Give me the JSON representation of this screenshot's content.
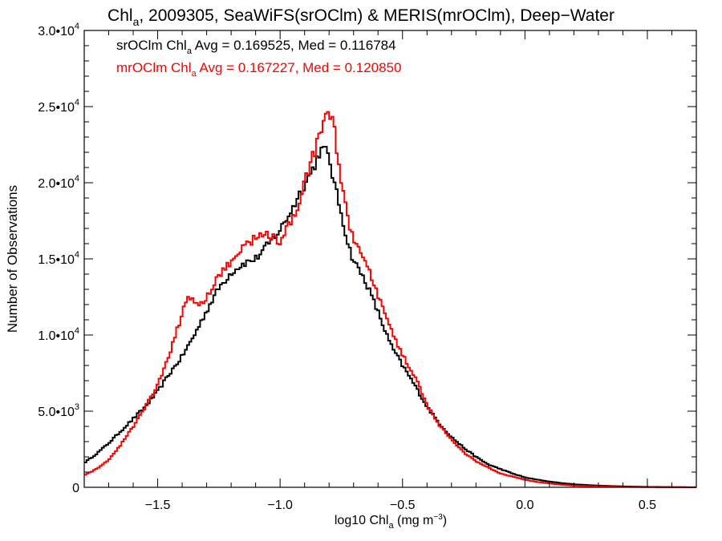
{
  "chart_data": {
    "type": "line",
    "title": {
      "pre": "Chl",
      "sub": "a",
      "post": ", 2009305, SeaWiFS(srOClm) & MERIS(mrOClm), Deep−Water"
    },
    "xlabel": {
      "pre": "log10 Chl",
      "sub": "a",
      "post": " (mg m",
      "sup": "−3",
      "close": ")"
    },
    "ylabel": "Number of Observations",
    "xlim": [
      -1.8,
      0.7
    ],
    "ylim": [
      0,
      30000
    ],
    "grid": false,
    "x_ticks": [
      -1.5,
      -1.0,
      -0.5,
      0.0,
      0.5
    ],
    "x_tick_labels": [
      "−1.5",
      "−1.0",
      "−0.5",
      "0.0",
      "0.5"
    ],
    "y_ticks": [
      {
        "value": 0,
        "mant": "0",
        "exp": ""
      },
      {
        "value": 5000,
        "mant": "5.0•10",
        "exp": "3"
      },
      {
        "value": 10000,
        "mant": "1.0•10",
        "exp": "4"
      },
      {
        "value": 15000,
        "mant": "1.5•10",
        "exp": "4"
      },
      {
        "value": 20000,
        "mant": "2.0•10",
        "exp": "4"
      },
      {
        "value": 25000,
        "mant": "2.5•10",
        "exp": "4"
      },
      {
        "value": 30000,
        "mant": "3.0•10",
        "exp": "4"
      }
    ],
    "annotations": [
      {
        "color": "#000000",
        "pre": "srOClm Chl",
        "sub": "a",
        "post": " Avg = 0.169525, Med = 0.116784"
      },
      {
        "color": "#ff0000",
        "pre": "mrOClm Chl",
        "sub": "a",
        "post": " Avg = 0.167227, Med = 0.120850"
      }
    ],
    "series": [
      {
        "color": "#000000",
        "x": [
          -1.8,
          -1.75,
          -1.7,
          -1.65,
          -1.6,
          -1.55,
          -1.5,
          -1.45,
          -1.4,
          -1.35,
          -1.3,
          -1.25,
          -1.2,
          -1.15,
          -1.1,
          -1.05,
          -1.0,
          -0.95,
          -0.92,
          -0.89,
          -0.86,
          -0.84,
          -0.82,
          -0.8,
          -0.78,
          -0.75,
          -0.72,
          -0.7,
          -0.65,
          -0.6,
          -0.55,
          -0.5,
          -0.45,
          -0.4,
          -0.35,
          -0.3,
          -0.25,
          -0.2,
          -0.15,
          -0.1,
          -0.05,
          0.0,
          0.05,
          0.1,
          0.15,
          0.2,
          0.3,
          0.4,
          0.5,
          0.6,
          0.7
        ],
        "y": [
          1600,
          2200,
          2900,
          3700,
          4500,
          5300,
          6300,
          7500,
          8600,
          10000,
          11600,
          13100,
          14100,
          14700,
          15000,
          15900,
          16900,
          18300,
          19300,
          20200,
          21100,
          22000,
          22200,
          21700,
          20000,
          18000,
          15800,
          14900,
          13500,
          11500,
          9400,
          8000,
          6700,
          5300,
          4200,
          3300,
          2600,
          2000,
          1500,
          1200,
          900,
          650,
          500,
          380,
          280,
          200,
          110,
          60,
          30,
          15,
          5
        ]
      },
      {
        "color": "#ff0000",
        "x": [
          -1.8,
          -1.75,
          -1.7,
          -1.65,
          -1.6,
          -1.55,
          -1.5,
          -1.47,
          -1.44,
          -1.41,
          -1.38,
          -1.36,
          -1.34,
          -1.32,
          -1.3,
          -1.25,
          -1.2,
          -1.15,
          -1.1,
          -1.05,
          -1.0,
          -0.97,
          -0.94,
          -0.92,
          -0.89,
          -0.86,
          -0.84,
          -0.82,
          -0.8,
          -0.78,
          -0.76,
          -0.74,
          -0.72,
          -0.7,
          -0.65,
          -0.6,
          -0.55,
          -0.5,
          -0.45,
          -0.4,
          -0.35,
          -0.3,
          -0.25,
          -0.2,
          -0.15,
          -0.1,
          -0.05,
          0.0,
          0.05,
          0.1,
          0.15,
          0.2,
          0.3,
          0.4,
          0.5,
          0.6,
          0.7
        ],
        "y": [
          800,
          1200,
          1800,
          2800,
          4000,
          5300,
          6700,
          7900,
          9300,
          10900,
          12400,
          12500,
          12000,
          12100,
          12500,
          13900,
          14800,
          15800,
          16400,
          16600,
          16200,
          17000,
          17800,
          18700,
          20600,
          22000,
          23000,
          24500,
          24800,
          23600,
          21200,
          19000,
          17300,
          16300,
          14700,
          12600,
          10400,
          8700,
          7300,
          5400,
          4100,
          3100,
          2300,
          1700,
          1300,
          900,
          700,
          500,
          350,
          250,
          170,
          110,
          55,
          28,
          12,
          5,
          2
        ]
      }
    ]
  }
}
